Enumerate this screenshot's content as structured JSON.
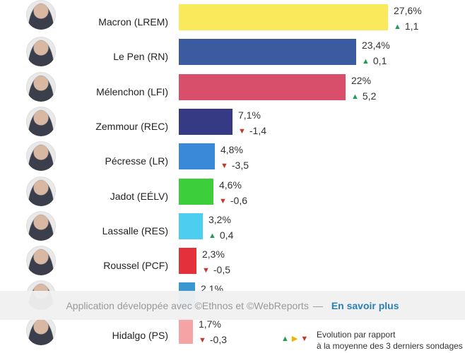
{
  "chart_data": {
    "type": "bar",
    "orientation": "horizontal",
    "categories": [
      "Macron (LREM)",
      "Le Pen (RN)",
      "Mélenchon (LFI)",
      "Zemmour (REC)",
      "Pécresse (LR)",
      "Jadot (EÉLV)",
      "Lassalle (RES)",
      "Roussel (PCF)",
      "",
      "Hidalgo (PS)"
    ],
    "values": [
      27.6,
      23.4,
      22,
      7.1,
      4.8,
      4.6,
      3.2,
      2.3,
      2.1,
      1.7
    ],
    "value_labels": [
      "27,6%",
      "23,4%",
      "22%",
      "7,1%",
      "4,8%",
      "4,6%",
      "3,2%",
      "2,3%",
      "2,1%",
      "1,7%"
    ],
    "deltas": [
      1.1,
      0.1,
      5.2,
      -1.4,
      -3.5,
      -0.6,
      0.4,
      -0.5,
      null,
      -0.3
    ],
    "delta_labels": [
      "1,1",
      "0,1",
      "5,2",
      "-1,4",
      "-3,5",
      "-0,6",
      "0,4",
      "-0,5",
      "",
      "-0,3"
    ],
    "colors": [
      "#fbe95c",
      "#3c5aa0",
      "#d94f6b",
      "#363a85",
      "#3a89d8",
      "#3ccf3a",
      "#4dcdef",
      "#e3303a",
      "#3a97d1",
      "#f6a3a6"
    ],
    "xlim": [
      0,
      27.6
    ],
    "grid": false,
    "title": "",
    "xlabel": "",
    "ylabel": ""
  },
  "footer": {
    "text": "Application développée avec ©Ethnos et ©WebReports",
    "separator": "—",
    "link": "En savoir plus"
  },
  "legend": {
    "arrows": "▲▶▼",
    "line1": "Evolution par rapport",
    "line2": "à la moyenne des 3 derniers sondages"
  },
  "icons": {
    "up": "▲",
    "down": "▼"
  }
}
